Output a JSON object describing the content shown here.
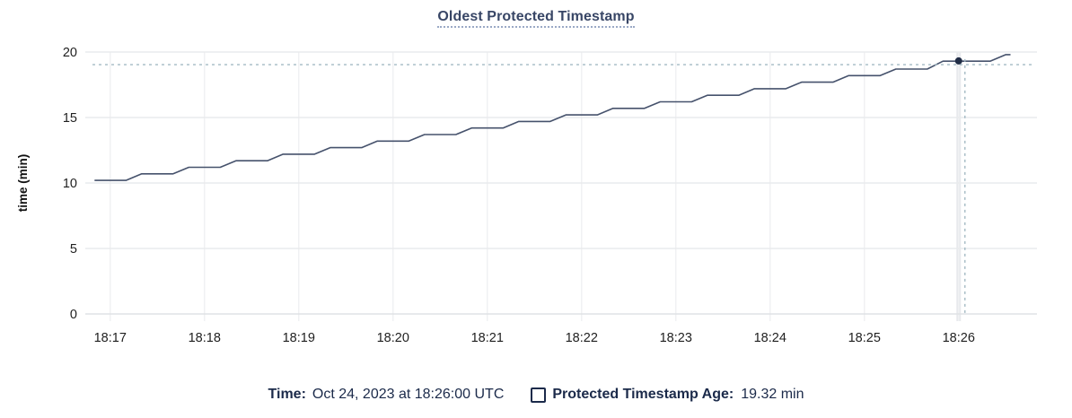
{
  "title": "Oldest Protected Timestamp",
  "footer": {
    "time_label": "Time:",
    "time_value": "Oct 24, 2023 at 18:26:00 UTC",
    "legend_label": "Protected Timestamp Age:",
    "legend_value": "19.32 min"
  },
  "colors": {
    "title": "#384666",
    "footer_text": "#1b2a4a",
    "series_line": "#46526c",
    "hover_dot": "#212d46",
    "crosshair": "#a4bac4",
    "h_grid": "#e9ebed",
    "v_grid": "#f0f1f3",
    "baseline": "#dfe2e5",
    "hover_band": "#e8eaed"
  },
  "chart_data": {
    "type": "line",
    "title": "Oldest Protected Timestamp",
    "xlabel": "",
    "ylabel": "time (min)",
    "ylim": [
      0,
      20
    ],
    "yticks": [
      0,
      5,
      10,
      15,
      20
    ],
    "grid": true,
    "legend_position": "bottom",
    "x_unit": "seconds from left edge of plot (left edge = 18:16:47 UTC, Oct 24 2023)",
    "xticks": [
      {
        "label": "18:17",
        "t": 13
      },
      {
        "label": "18:18",
        "t": 73
      },
      {
        "label": "18:19",
        "t": 133
      },
      {
        "label": "18:20",
        "t": 193
      },
      {
        "label": "18:21",
        "t": 253
      },
      {
        "label": "18:22",
        "t": 313
      },
      {
        "label": "18:23",
        "t": 373
      },
      {
        "label": "18:24",
        "t": 433
      },
      {
        "label": "18:25",
        "t": 493
      },
      {
        "label": "18:26",
        "t": 553
      }
    ],
    "series": [
      {
        "name": "Protected Timestamp Age",
        "points": [
          [
            3,
            10.2
          ],
          [
            23,
            10.2
          ],
          [
            33,
            10.7
          ],
          [
            53,
            10.7
          ],
          [
            63,
            11.2
          ],
          [
            83,
            11.2
          ],
          [
            93,
            11.7
          ],
          [
            113,
            11.7
          ],
          [
            123,
            12.2
          ],
          [
            143,
            12.2
          ],
          [
            153,
            12.7
          ],
          [
            173,
            12.7
          ],
          [
            183,
            13.2
          ],
          [
            203,
            13.2
          ],
          [
            213,
            13.7
          ],
          [
            233,
            13.7
          ],
          [
            243,
            14.2
          ],
          [
            263,
            14.2
          ],
          [
            273,
            14.7
          ],
          [
            293,
            14.7
          ],
          [
            303,
            15.2
          ],
          [
            323,
            15.2
          ],
          [
            333,
            15.7
          ],
          [
            353,
            15.7
          ],
          [
            363,
            16.2
          ],
          [
            383,
            16.2
          ],
          [
            393,
            16.7
          ],
          [
            413,
            16.7
          ],
          [
            423,
            17.2
          ],
          [
            443,
            17.2
          ],
          [
            453,
            17.7
          ],
          [
            473,
            17.7
          ],
          [
            483,
            18.2
          ],
          [
            503,
            18.2
          ],
          [
            513,
            18.7
          ],
          [
            533,
            18.7
          ],
          [
            543,
            19.3
          ],
          [
            573,
            19.3
          ],
          [
            583,
            19.8
          ],
          [
            586,
            19.8
          ]
        ]
      }
    ],
    "hover": {
      "time_label": "Oct 24, 2023 at 18:26:00 UTC",
      "t": 553,
      "value": 19.32,
      "crosshair_t": 557,
      "crosshair_value": 19.04
    }
  }
}
